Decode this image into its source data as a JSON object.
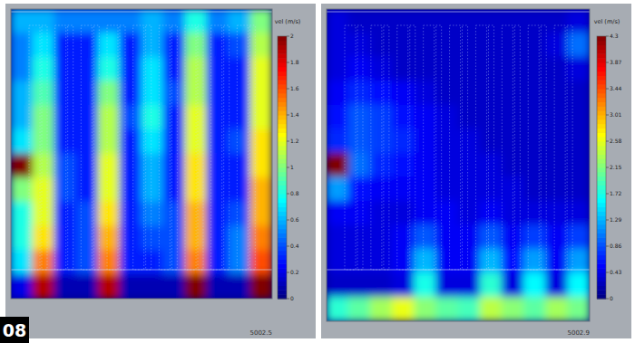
{
  "figure_label": "08",
  "chart_data": [
    {
      "type": "heatmap",
      "caption": "5002.5",
      "colorbar_label": "vel (m/s)",
      "colorbar_range": [
        0,
        2
      ],
      "colorbar_ticks": [
        0,
        0.2,
        0.4,
        0.6,
        0.8,
        1,
        1.2,
        1.4,
        1.6,
        1.8,
        2
      ],
      "cells": [
        [
          0.6,
          0.6,
          0.5,
          0.5,
          0.5,
          0.5,
          0.6,
          0.5,
          0.8,
          0.5,
          0.6,
          1.0
        ],
        [
          0.5,
          0.7,
          0.3,
          0.3,
          0.7,
          0.3,
          0.6,
          0.3,
          1.0,
          0.3,
          0.4,
          1.1
        ],
        [
          0.5,
          0.8,
          0.3,
          0.3,
          0.8,
          0.3,
          0.7,
          0.3,
          1.1,
          0.3,
          0.3,
          1.2
        ],
        [
          0.6,
          0.9,
          0.3,
          0.3,
          1.0,
          0.3,
          0.7,
          0.4,
          1.1,
          0.3,
          0.3,
          1.2
        ],
        [
          0.6,
          1.0,
          0.3,
          0.3,
          1.1,
          0.4,
          0.8,
          0.3,
          1.2,
          0.3,
          0.3,
          1.2
        ],
        [
          0.7,
          1.0,
          0.3,
          0.3,
          1.1,
          0.3,
          0.7,
          0.3,
          1.2,
          0.3,
          0.4,
          1.3
        ],
        [
          2.0,
          1.1,
          0.4,
          0.3,
          1.2,
          0.3,
          0.6,
          0.3,
          1.3,
          0.3,
          0.3,
          1.3
        ],
        [
          1.0,
          1.2,
          0.4,
          0.3,
          1.2,
          0.3,
          0.6,
          0.3,
          1.3,
          0.3,
          0.3,
          1.4
        ],
        [
          0.8,
          1.2,
          0.3,
          0.4,
          1.3,
          0.3,
          0.5,
          0.4,
          1.4,
          0.3,
          0.4,
          1.4
        ],
        [
          0.8,
          1.3,
          0.3,
          0.4,
          1.4,
          0.3,
          0.4,
          0.4,
          1.4,
          0.3,
          0.5,
          1.5
        ],
        [
          0.7,
          1.5,
          0.3,
          0.4,
          1.5,
          0.3,
          0.3,
          0.4,
          1.5,
          0.3,
          0.5,
          1.6
        ],
        [
          0.2,
          1.9,
          0.1,
          0.1,
          1.9,
          0.1,
          0.1,
          0.1,
          2.0,
          0.1,
          0.1,
          2.0
        ]
      ]
    },
    {
      "type": "heatmap",
      "caption": "5002.9",
      "colorbar_label": "vel (m/s)",
      "colorbar_range": [
        0,
        4.3
      ],
      "colorbar_ticks": [
        0,
        0.43,
        0.86,
        1.29,
        1.72,
        2.15,
        2.58,
        3.01,
        3.44,
        3.87,
        4.3
      ],
      "cells": [
        [
          0.4,
          0.3,
          0.3,
          0.3,
          0.3,
          0.3,
          0.3,
          0.3,
          0.3,
          0.3,
          0.3,
          0.4
        ],
        [
          0.4,
          0.4,
          0.3,
          0.3,
          0.3,
          0.3,
          0.3,
          0.3,
          0.3,
          0.3,
          0.4,
          1.0
        ],
        [
          0.4,
          0.5,
          0.4,
          0.3,
          0.3,
          0.3,
          0.3,
          0.3,
          0.3,
          0.3,
          0.3,
          0.4
        ],
        [
          0.5,
          0.7,
          0.6,
          0.5,
          0.4,
          0.3,
          0.3,
          0.3,
          0.3,
          0.3,
          0.3,
          0.3
        ],
        [
          0.6,
          0.9,
          0.8,
          0.6,
          0.5,
          0.4,
          0.3,
          0.3,
          0.3,
          0.3,
          0.3,
          0.3
        ],
        [
          0.7,
          0.9,
          0.8,
          0.7,
          0.5,
          0.4,
          0.4,
          0.3,
          0.3,
          0.3,
          0.3,
          0.3
        ],
        [
          4.3,
          1.0,
          0.7,
          0.6,
          0.5,
          0.4,
          0.4,
          0.4,
          0.3,
          0.3,
          0.3,
          0.3
        ],
        [
          1.2,
          0.6,
          0.5,
          0.5,
          0.5,
          0.4,
          0.4,
          0.4,
          0.4,
          0.3,
          0.3,
          0.3
        ],
        [
          0.5,
          0.5,
          0.4,
          0.4,
          0.5,
          0.5,
          0.4,
          0.5,
          0.4,
          0.4,
          0.4,
          0.4
        ],
        [
          0.4,
          0.4,
          0.4,
          0.5,
          0.9,
          0.5,
          0.5,
          0.9,
          0.5,
          0.8,
          0.5,
          0.8
        ],
        [
          0.4,
          0.4,
          0.4,
          0.5,
          1.3,
          0.5,
          0.5,
          1.3,
          0.6,
          1.2,
          0.5,
          1.2
        ],
        [
          0.3,
          0.3,
          0.3,
          0.4,
          1.7,
          0.4,
          0.4,
          1.8,
          0.4,
          1.6,
          0.4,
          1.6
        ],
        [
          1.8,
          2.0,
          2.3,
          2.6,
          2.2,
          2.0,
          1.9,
          2.4,
          2.2,
          2.0,
          2.3,
          2.1
        ]
      ]
    }
  ]
}
